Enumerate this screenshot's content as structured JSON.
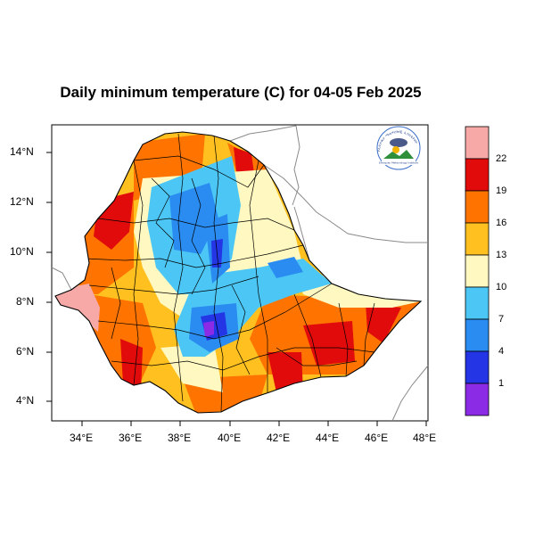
{
  "title": "Daily minimum temperature (C) for 04-05 Feb 2025",
  "axes": {
    "x_ticks": [
      "34°E",
      "36°E",
      "38°E",
      "40°E",
      "42°E",
      "44°E",
      "46°E",
      "48°E"
    ],
    "y_ticks": [
      "14°N",
      "12°N",
      "10°N",
      "8°N",
      "6°N",
      "4°N"
    ]
  },
  "colorbar": {
    "labels": [
      "22",
      "19",
      "16",
      "13",
      "10",
      "7",
      "4",
      "1"
    ],
    "colors": [
      "#f7a9a8",
      "#e20b0b",
      "#ff7400",
      "#ffc020",
      "#fff8c0",
      "#4cc7f5",
      "#2a8cf0",
      "#2435e6",
      "#8b2be6"
    ]
  },
  "logo": {
    "text_top": "የኢትዮጵያ ሜቲዎሮሎጂ ኢንስቲትዩት",
    "text_bottom": "Ethiopian Meteorology Institute"
  }
}
